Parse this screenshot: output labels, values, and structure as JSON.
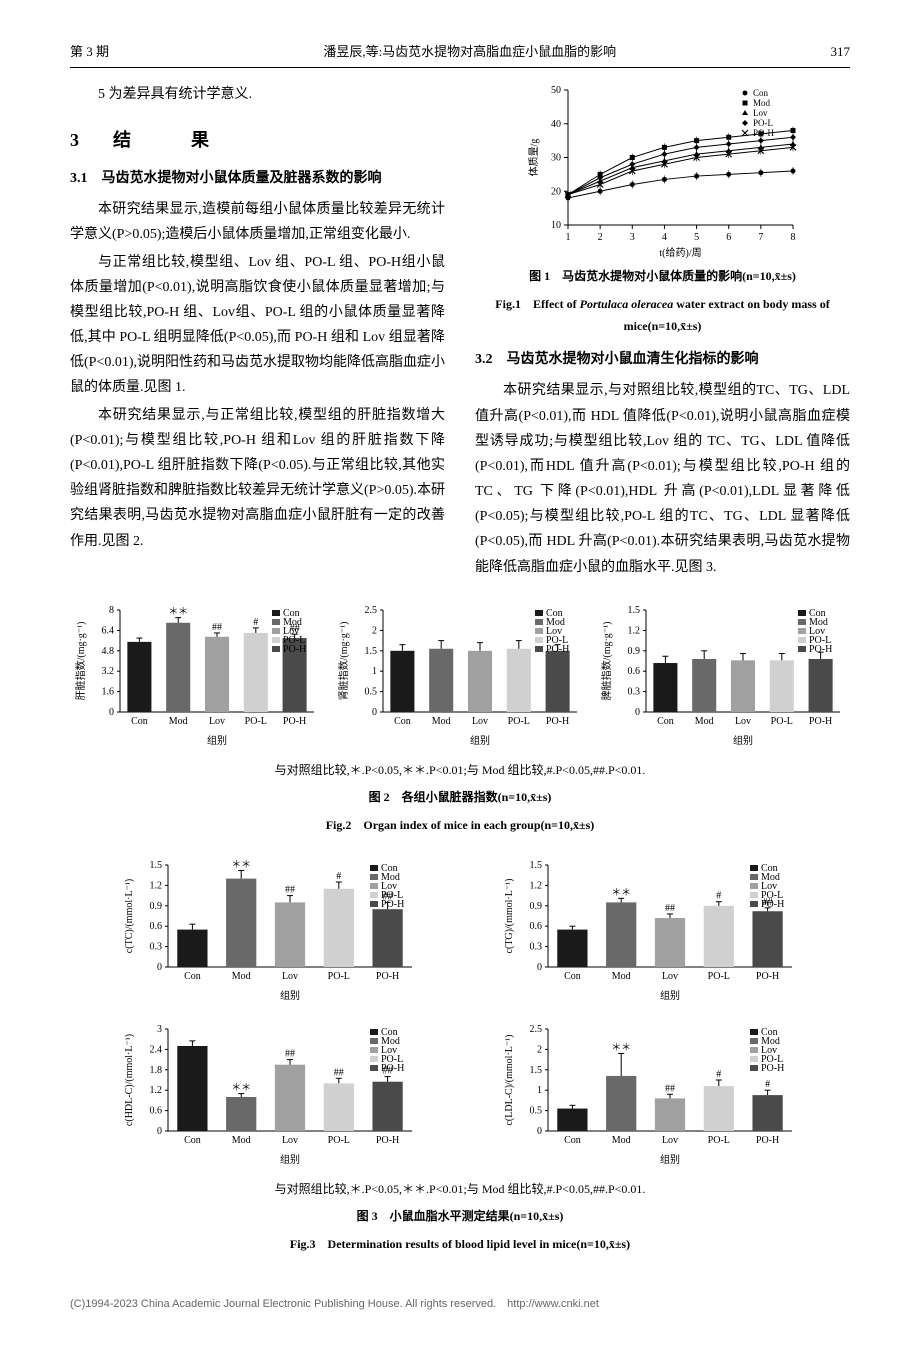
{
  "header": {
    "issue": "第 3 期",
    "authors_title": "潘昱辰,等:马齿苋水提物对高脂血症小鼠血脂的影响",
    "page": "317"
  },
  "intro": "5 为差异具有统计学意义.",
  "section3": {
    "num": "3",
    "title": "结　　果"
  },
  "sub31": {
    "num": "3.1",
    "title": "马齿苋水提物对小鼠体质量及脏器系数的影响"
  },
  "p31a": "本研究结果显示,造模前每组小鼠体质量比较差异无统计学意义(P>0.05);造模后小鼠体质量增加,正常组变化最小.",
  "p31b": "与正常组比较,模型组、Lov 组、PO-L 组、PO-H组小鼠体质量增加(P<0.01),说明高脂饮食使小鼠体质量显著增加;与模型组比较,PO-H 组、Lov组、PO-L 组的小鼠体质量显著降低,其中 PO-L 组明显降低(P<0.05),而 PO-H 组和 Lov 组显著降低(P<0.01),说明阳性药和马齿苋水提取物均能降低高脂血症小鼠的体质量.见图 1.",
  "p31c": "本研究结果显示,与正常组比较,模型组的肝脏指数增大(P<0.01);与模型组比较,PO-H 组和Lov 组的肝脏指数下降(P<0.01),PO-L 组肝脏指数下降(P<0.05).与正常组比较,其他实验组肾脏指数和脾脏指数比较差异无统计学意义(P>0.05).本研究结果表明,马齿苋水提物对高脂血症小鼠肝脏有一定的改善作用.见图 2.",
  "sub32": {
    "num": "3.2",
    "title": "马齿苋水提物对小鼠血清生化指标的影响"
  },
  "p32a": "本研究结果显示,与对照组比较,模型组的TC、TG、LDL 值升高(P<0.01),而 HDL 值降低(P<0.01),说明小鼠高脂血症模型诱导成功;与模型组比较,Lov 组的 TC、TG、LDL 值降低(P<0.01),而HDL 值升高(P<0.01);与模型组比较,PO-H 组的TC、TG 下降(P<0.01),HDL 升高(P<0.01),LDL显著降低(P<0.05);与模型组比较,PO-L 组的TC、TG、LDL 显著降低(P<0.05),而 HDL 升高(P<0.01).本研究结果表明,马齿苋水提物能降低高脂血症小鼠的血脂水平.见图 3.",
  "fig1": {
    "cap_cn": "图 1　马齿苋水提物对小鼠体质量的影响(n=10,x̄±s)",
    "cap_en": "Fig.1　Effect of Portulaca oleracea water extract on body mass of mice(n=10,x̄±s)",
    "xlabel": "t(给药)/周",
    "ylabel": "体质量/g",
    "ylim": [
      10,
      50
    ],
    "yticks": [
      10,
      20,
      30,
      40,
      50
    ],
    "xticks": [
      1,
      2,
      3,
      4,
      5,
      6,
      7,
      8
    ],
    "groups": [
      "Con",
      "Mod",
      "Lov",
      "PO-L",
      "PO-H"
    ],
    "series": {
      "Con": [
        18,
        20,
        22,
        23.5,
        24.5,
        25,
        25.5,
        26
      ],
      "Mod": [
        19,
        25,
        30,
        33,
        35,
        36,
        37,
        38
      ],
      "Lov": [
        19,
        23,
        27,
        29,
        31,
        32,
        33,
        34
      ],
      "PO-L": [
        19,
        24,
        28,
        31,
        33,
        34,
        35,
        36
      ],
      "PO-H": [
        19,
        22,
        26,
        28,
        30,
        31,
        32,
        33
      ]
    },
    "markers": {
      "Con": "circle",
      "Mod": "square",
      "Lov": "triangle",
      "PO-L": "diamond",
      "PO-H": "cross"
    }
  },
  "fig2": {
    "cap_cn": "图 2　各组小鼠脏器指数(n=10,x̄±s)",
    "cap_en": "Fig.2　Organ index of mice in each group(n=10,x̄±s)",
    "note": "与对照组比较,＊.P<0.05,＊＊.P<0.01;与 Mod 组比较,#.P<0.05,##.P<0.01.",
    "groups": [
      "Con",
      "Mod",
      "Lov",
      "PO-L",
      "PO-H"
    ],
    "xlabel": "组别",
    "colors": [
      "#1a1a1a",
      "#696969",
      "#a0a0a0",
      "#d0d0d0",
      "#4a4a4a"
    ],
    "charts": [
      {
        "ylabel": "肝脏指数/(mg·g⁻¹)",
        "ylim": [
          0,
          8
        ],
        "values": [
          5.5,
          7.0,
          5.9,
          6.2,
          5.8
        ],
        "err": [
          0.3,
          0.4,
          0.3,
          0.4,
          0.3
        ],
        "marks": [
          "",
          "＊＊",
          "##",
          "#",
          "##"
        ]
      },
      {
        "ylabel": "肾脏指数/(mg·g⁻¹)",
        "ylim": [
          0,
          2.5
        ],
        "values": [
          1.5,
          1.55,
          1.5,
          1.55,
          1.5
        ],
        "err": [
          0.15,
          0.2,
          0.2,
          0.2,
          0.15
        ],
        "marks": [
          "",
          "",
          "",
          "",
          ""
        ]
      },
      {
        "ylabel": "脾脏指数/(mg·g⁻¹)",
        "ylim": [
          0,
          1.5
        ],
        "values": [
          0.72,
          0.78,
          0.76,
          0.76,
          0.78
        ],
        "err": [
          0.1,
          0.12,
          0.1,
          0.1,
          0.1
        ],
        "marks": [
          "",
          "",
          "",
          "",
          ""
        ]
      }
    ]
  },
  "fig3": {
    "cap_cn": "图 3　小鼠血脂水平测定结果(n=10,x̄±s)",
    "cap_en": "Fig.3　Determination results of blood lipid level in mice(n=10,x̄±s)",
    "note": "与对照组比较,＊.P<0.05,＊＊.P<0.01;与 Mod 组比较,#.P<0.05,##.P<0.01.",
    "groups": [
      "Con",
      "Mod",
      "Lov",
      "PO-L",
      "PO-H"
    ],
    "xlabel": "组别",
    "colors": [
      "#1a1a1a",
      "#696969",
      "#a0a0a0",
      "#d0d0d0",
      "#4a4a4a"
    ],
    "charts": [
      {
        "ylabel": "c(TC)/(mmol·L⁻¹)",
        "ylim": [
          0,
          1.5
        ],
        "values": [
          0.55,
          1.3,
          0.95,
          1.15,
          0.85
        ],
        "err": [
          0.08,
          0.12,
          0.1,
          0.1,
          0.1
        ],
        "marks": [
          "",
          "＊＊",
          "##",
          "#",
          "##"
        ]
      },
      {
        "ylabel": "c(TG)/(mmol·L⁻¹)",
        "ylim": [
          0,
          1.5
        ],
        "values": [
          0.55,
          0.95,
          0.72,
          0.9,
          0.82
        ],
        "err": [
          0.05,
          0.06,
          0.06,
          0.06,
          0.05
        ],
        "marks": [
          "",
          "＊＊",
          "##",
          "#",
          "##"
        ]
      },
      {
        "ylabel": "c(HDL-C)/(mmol·L⁻¹)",
        "ylim": [
          0,
          3
        ],
        "values": [
          2.5,
          1.0,
          1.95,
          1.4,
          1.45
        ],
        "err": [
          0.15,
          0.1,
          0.15,
          0.15,
          0.15
        ],
        "marks": [
          "",
          "＊＊",
          "##",
          "##",
          "##"
        ]
      },
      {
        "ylabel": "c(LDL-C)/(mmol·L⁻¹)",
        "ylim": [
          0,
          2.5
        ],
        "values": [
          0.55,
          1.35,
          0.8,
          1.1,
          0.88
        ],
        "err": [
          0.08,
          0.55,
          0.1,
          0.15,
          0.12
        ],
        "marks": [
          "",
          "＊＊",
          "##",
          "#",
          "#"
        ]
      }
    ]
  },
  "footer": "(C)1994-2023 China Academic Journal Electronic Publishing House. All rights reserved.　http://www.cnki.net"
}
